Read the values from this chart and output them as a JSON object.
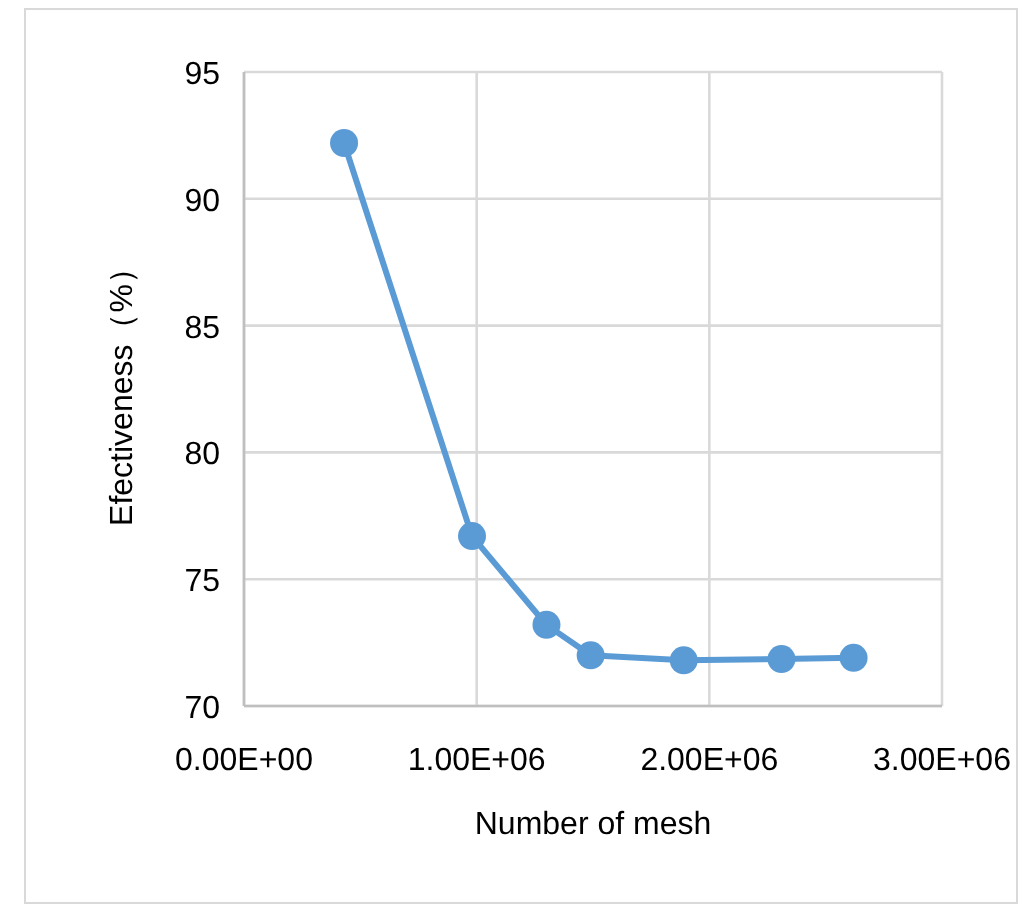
{
  "chart_data": {
    "type": "line",
    "xlabel": "Number of mesh",
    "ylabel": "Efectiveness（%）",
    "x": [
      430000,
      980000,
      1300000,
      1490000,
      1890000,
      2310000,
      2620000
    ],
    "series": [
      {
        "color": "#5b9bd5",
        "values": [
          92.2,
          76.7,
          73.2,
          72.0,
          71.8,
          71.85,
          71.9
        ]
      }
    ],
    "xlim": [
      0,
      3000000
    ],
    "xticks": [
      {
        "value": 0,
        "label": "0.00E+00"
      },
      {
        "value": 1000000,
        "label": "1.00E+06"
      },
      {
        "value": 2000000,
        "label": "2.00E+06"
      },
      {
        "value": 3000000,
        "label": "3.00E+06"
      }
    ],
    "ylim": [
      70,
      95
    ],
    "yticks": [
      70,
      75,
      80,
      85,
      90,
      95
    ],
    "grid": true,
    "marker": "circle",
    "line_style": "solid"
  }
}
